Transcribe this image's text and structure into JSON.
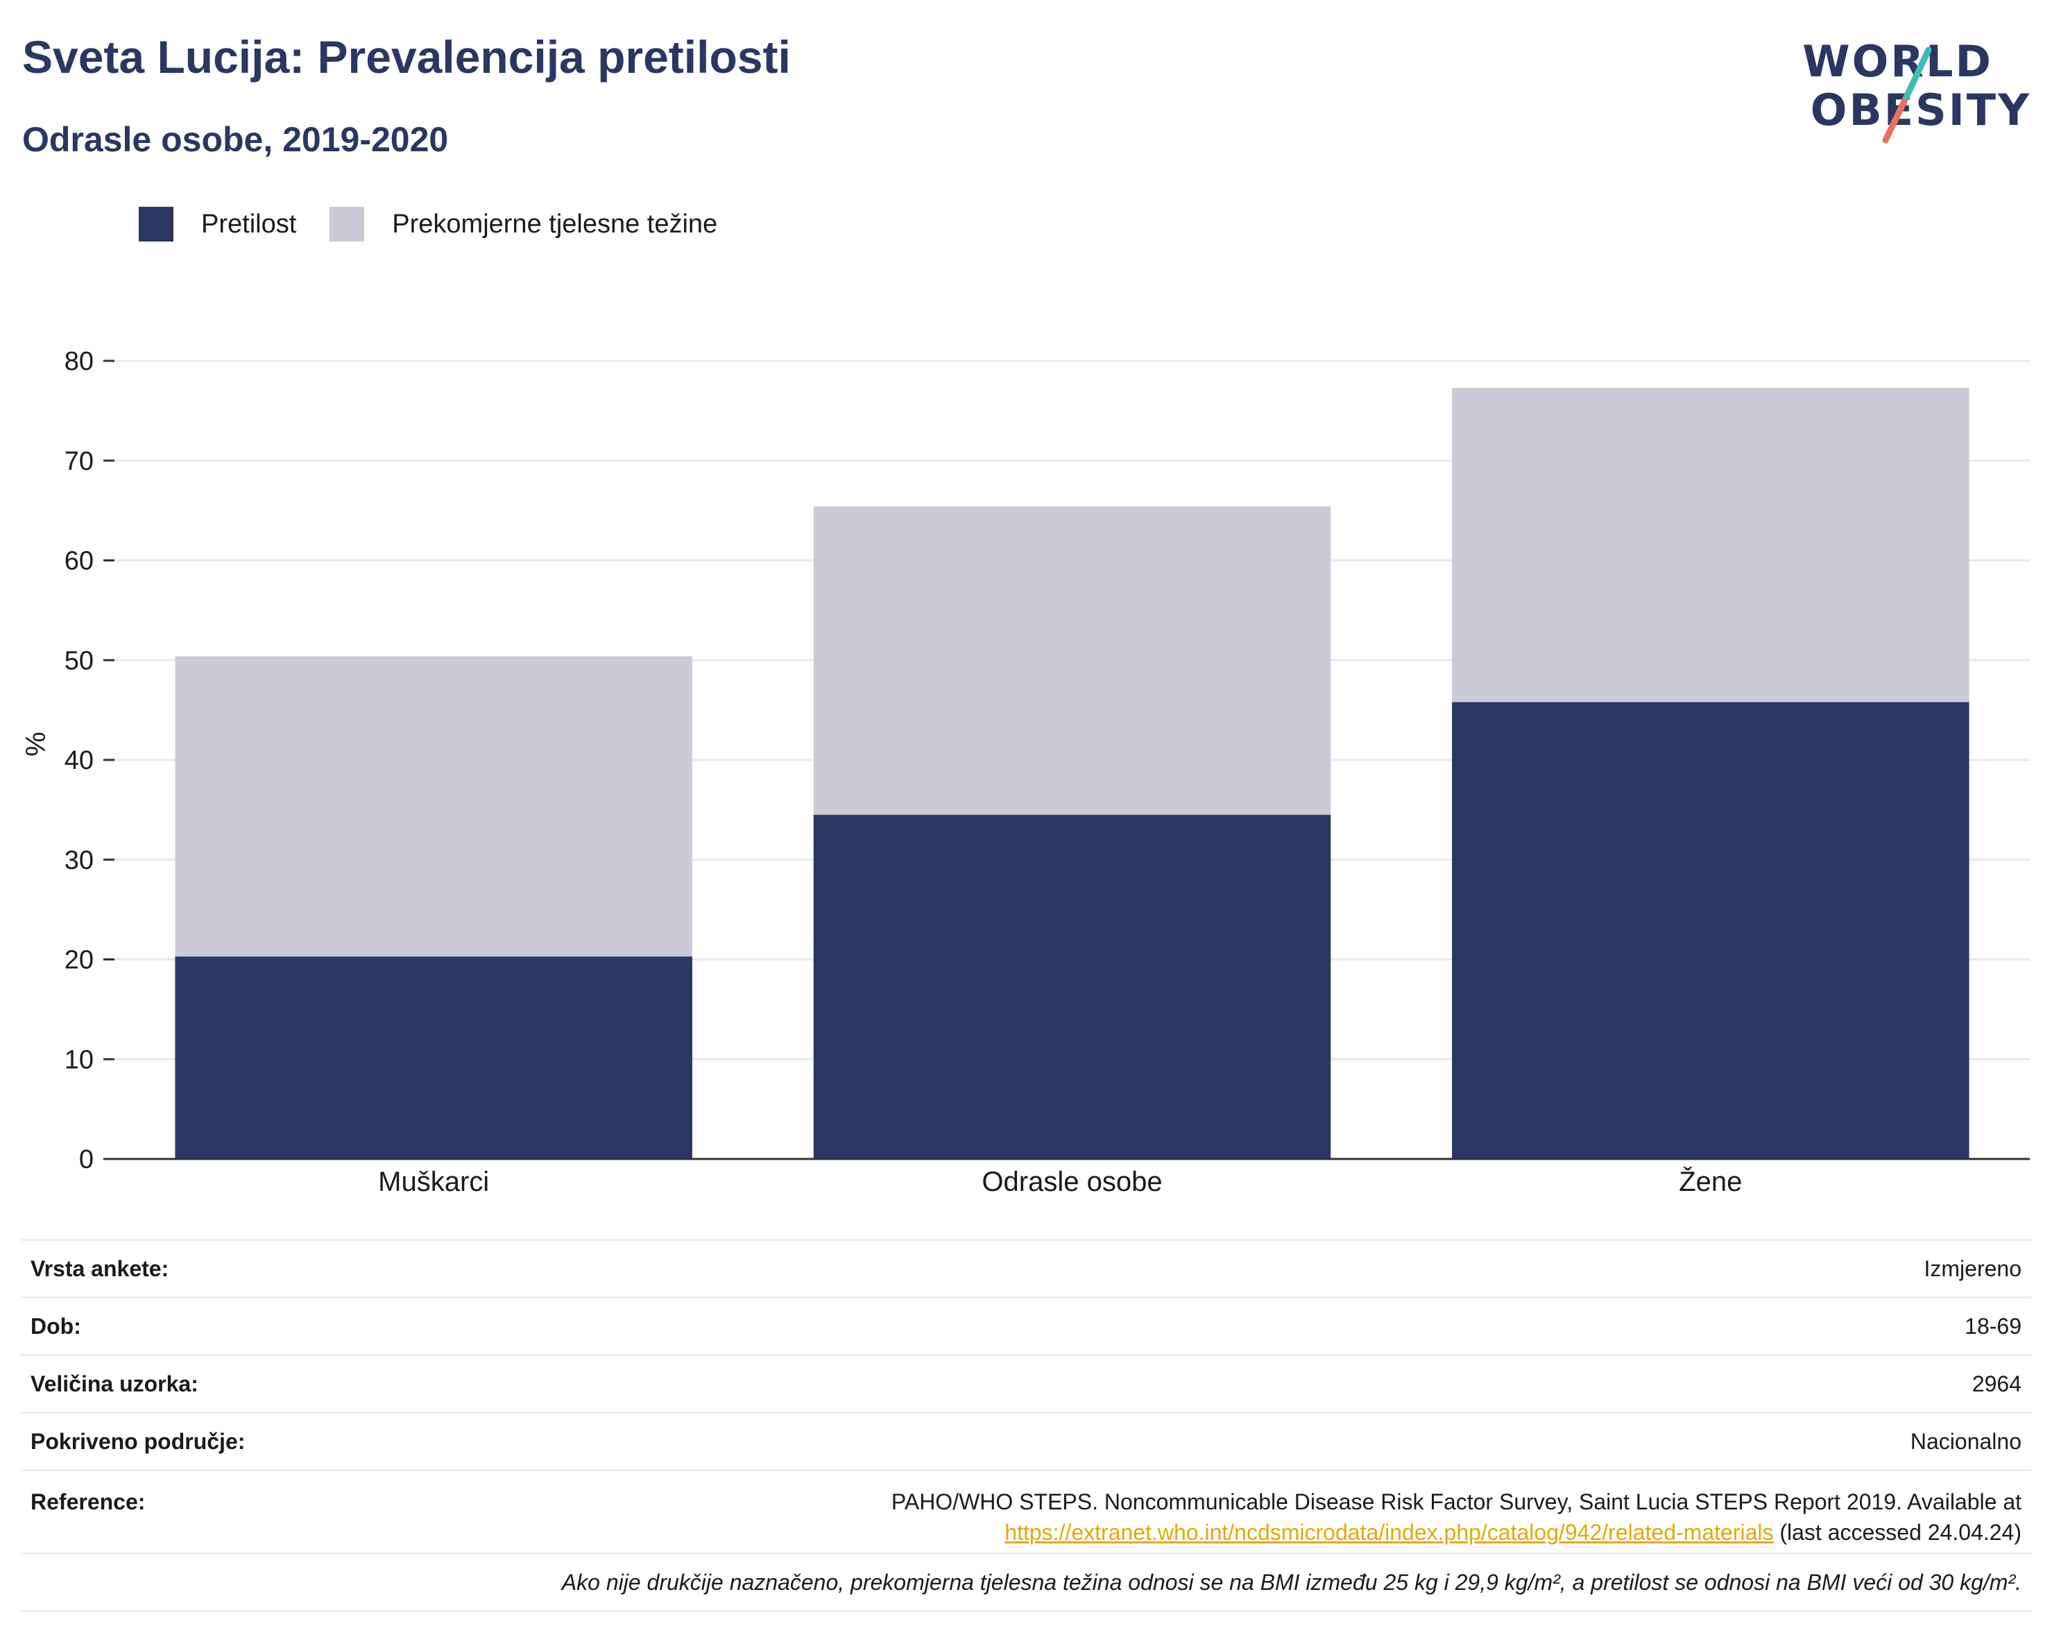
{
  "header": {
    "title": "Sveta Lucija: Prevalencija pretilosti",
    "subtitle": "Odrasle osobe, 2019-2020"
  },
  "logo": {
    "line1": "WORLD",
    "line2": "OBESITY"
  },
  "colors": {
    "obesity": "#2a3763",
    "overweight": "#cacbd6",
    "accent_teal": "#3cbcb4",
    "accent_coral": "#e8705f",
    "link": "#e6a800"
  },
  "chart_data": {
    "type": "bar",
    "stacked": true,
    "categories": [
      "Muškarci",
      "Odrasle osobe",
      "Žene"
    ],
    "series": [
      {
        "name": "Pretilost",
        "values": [
          20.3,
          34.5,
          45.8
        ]
      },
      {
        "name": "Prekomjerne tjelesne težine",
        "values": [
          30.1,
          30.9,
          31.5
        ]
      }
    ],
    "ylabel": "%",
    "ylim": [
      0,
      80
    ],
    "yticks": [
      0,
      10,
      20,
      30,
      40,
      50,
      60,
      70,
      80
    ],
    "grid": true,
    "legend_position": "top-left"
  },
  "info": {
    "survey_type_label": "Vrsta ankete:",
    "survey_type_value": "Izmjereno",
    "age_label": "Dob:",
    "age_value": "18-69",
    "sample_label": "Veličina uzorka:",
    "sample_value": "2964",
    "area_label": "Pokriveno područje:",
    "area_value": "Nacionalno",
    "reference_label": "Reference:",
    "reference_text": "PAHO/WHO STEPS. Noncommunicable Disease Risk Factor Survey, Saint Lucia STEPS Report 2019. Available at",
    "reference_link": "https://extranet.who.int/ncdsmicrodata/index.php/catalog/942/related-materials",
    "reference_suffix": " (last accessed 24.04.24)",
    "note": "Ako nije drukčije naznačeno, prekomjerna tjelesna težina odnosi se na BMI između 25 kg i 29,9 kg/m², a pretilost se odnosi na BMI veći od 30 kg/m²."
  }
}
